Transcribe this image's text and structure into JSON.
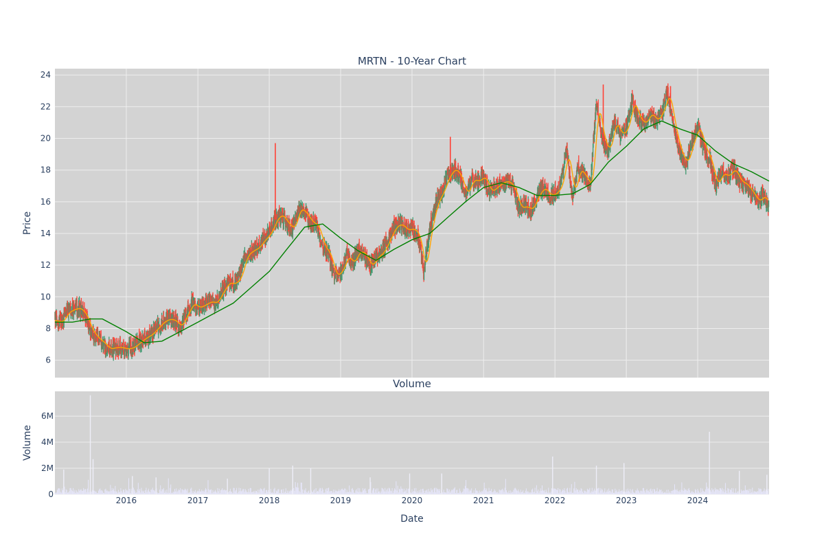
{
  "chart_data": [
    {
      "type": "candlestick",
      "title": "MRTN - 10-Year Chart",
      "ylabel": "Price",
      "ylim": [
        4.9,
        24.4
      ],
      "yticks": [
        6,
        8,
        10,
        12,
        14,
        16,
        18,
        20,
        22,
        24
      ],
      "x_range": [
        "2015-01-01",
        "2024-12-31"
      ],
      "grid": true,
      "colors": {
        "background": "#d3d3d3",
        "grid": "#eeeeee",
        "up": "#3d9970",
        "down": "#ff4136",
        "ma_short": "#ffa500",
        "ma_long": "#008000",
        "text": "#2a3f5f"
      },
      "price_path": [
        [
          "2015-01-01",
          8.5
        ],
        [
          "2015-02-01",
          8.4
        ],
        [
          "2015-03-01",
          9.0
        ],
        [
          "2015-04-01",
          9.2
        ],
        [
          "2015-05-01",
          9.3
        ],
        [
          "2015-06-01",
          8.9
        ],
        [
          "2015-07-01",
          7.9
        ],
        [
          "2015-08-01",
          7.4
        ],
        [
          "2015-09-01",
          7.1
        ],
        [
          "2015-10-01",
          6.7
        ],
        [
          "2015-11-01",
          6.8
        ],
        [
          "2015-12-01",
          6.8
        ],
        [
          "2016-01-01",
          6.7
        ],
        [
          "2016-02-01",
          6.8
        ],
        [
          "2016-03-01",
          7.1
        ],
        [
          "2016-04-01",
          7.4
        ],
        [
          "2016-05-01",
          7.6
        ],
        [
          "2016-06-01",
          8.0
        ],
        [
          "2016-07-01",
          8.4
        ],
        [
          "2016-08-01",
          8.6
        ],
        [
          "2016-09-01",
          8.5
        ],
        [
          "2016-10-01",
          8.1
        ],
        [
          "2016-11-01",
          8.9
        ],
        [
          "2016-12-01",
          9.6
        ],
        [
          "2017-01-01",
          9.3
        ],
        [
          "2017-02-01",
          9.5
        ],
        [
          "2017-03-01",
          9.7
        ],
        [
          "2017-04-01",
          9.6
        ],
        [
          "2017-05-01",
          10.3
        ],
        [
          "2017-06-01",
          10.9
        ],
        [
          "2017-07-01",
          10.8
        ],
        [
          "2017-08-01",
          11.2
        ],
        [
          "2017-09-01",
          12.6
        ],
        [
          "2017-10-01",
          12.9
        ],
        [
          "2017-11-01",
          13.1
        ],
        [
          "2017-12-01",
          13.6
        ],
        [
          "2018-01-01",
          14.0
        ],
        [
          "2018-02-01",
          14.9
        ],
        [
          "2018-03-01",
          15.2
        ],
        [
          "2018-04-01",
          14.6
        ],
        [
          "2018-05-01",
          14.3
        ],
        [
          "2018-06-01",
          15.6
        ],
        [
          "2018-07-01",
          15.3
        ],
        [
          "2018-08-01",
          14.7
        ],
        [
          "2018-09-01",
          14.5
        ],
        [
          "2018-10-01",
          13.2
        ],
        [
          "2018-11-01",
          12.7
        ],
        [
          "2018-12-01",
          11.3
        ],
        [
          "2019-01-01",
          11.6
        ],
        [
          "2019-02-01",
          12.6
        ],
        [
          "2019-03-01",
          12.1
        ],
        [
          "2019-04-01",
          12.9
        ],
        [
          "2019-05-01",
          12.7
        ],
        [
          "2019-06-01",
          11.9
        ],
        [
          "2019-07-01",
          12.5
        ],
        [
          "2019-08-01",
          12.8
        ],
        [
          "2019-09-01",
          13.6
        ],
        [
          "2019-10-01",
          14.4
        ],
        [
          "2019-11-01",
          14.6
        ],
        [
          "2019-12-01",
          14.2
        ],
        [
          "2020-01-01",
          14.3
        ],
        [
          "2020-02-01",
          13.9
        ],
        [
          "2020-03-01",
          11.6
        ],
        [
          "2020-04-01",
          14.3
        ],
        [
          "2020-05-01",
          15.9
        ],
        [
          "2020-06-01",
          16.6
        ],
        [
          "2020-07-01",
          17.6
        ],
        [
          "2020-08-01",
          18.1
        ],
        [
          "2020-09-01",
          17.6
        ],
        [
          "2020-10-01",
          16.4
        ],
        [
          "2020-11-01",
          17.4
        ],
        [
          "2020-12-01",
          17.3
        ],
        [
          "2021-01-01",
          17.6
        ],
        [
          "2021-02-01",
          16.6
        ],
        [
          "2021-03-01",
          16.9
        ],
        [
          "2021-04-01",
          17.2
        ],
        [
          "2021-05-01",
          17.3
        ],
        [
          "2021-06-01",
          16.9
        ],
        [
          "2021-07-01",
          15.6
        ],
        [
          "2021-08-01",
          15.7
        ],
        [
          "2021-09-01",
          15.5
        ],
        [
          "2021-10-01",
          16.4
        ],
        [
          "2021-11-01",
          16.9
        ],
        [
          "2021-12-01",
          16.4
        ],
        [
          "2022-01-01",
          16.5
        ],
        [
          "2022-02-01",
          17.1
        ],
        [
          "2022-03-01",
          19.3
        ],
        [
          "2022-04-01",
          16.4
        ],
        [
          "2022-05-01",
          18.1
        ],
        [
          "2022-06-01",
          17.6
        ],
        [
          "2022-07-01",
          16.9
        ],
        [
          "2022-08-01",
          22.4
        ],
        [
          "2022-09-01",
          19.9
        ],
        [
          "2022-10-01",
          19.2
        ],
        [
          "2022-11-01",
          21.1
        ],
        [
          "2022-12-01",
          20.2
        ],
        [
          "2023-01-01",
          20.6
        ],
        [
          "2023-02-01",
          22.4
        ],
        [
          "2023-03-01",
          21.3
        ],
        [
          "2023-04-01",
          20.9
        ],
        [
          "2023-05-01",
          21.6
        ],
        [
          "2023-06-01",
          21.1
        ],
        [
          "2023-07-01",
          21.7
        ],
        [
          "2023-08-01",
          22.9
        ],
        [
          "2023-09-01",
          20.6
        ],
        [
          "2023-10-01",
          19.1
        ],
        [
          "2023-11-01",
          18.4
        ],
        [
          "2023-12-01",
          19.7
        ],
        [
          "2024-01-01",
          20.8
        ],
        [
          "2024-02-01",
          19.4
        ],
        [
          "2024-03-01",
          18.7
        ],
        [
          "2024-04-01",
          17.0
        ],
        [
          "2024-05-01",
          17.8
        ],
        [
          "2024-06-01",
          17.6
        ],
        [
          "2024-07-01",
          18.1
        ],
        [
          "2024-08-01",
          17.3
        ],
        [
          "2024-09-01",
          17.1
        ],
        [
          "2024-10-01",
          16.6
        ],
        [
          "2024-11-01",
          16.0
        ],
        [
          "2024-12-01",
          16.4
        ],
        [
          "2024-12-31",
          15.6
        ]
      ],
      "spikes": [
        {
          "date": "2018-02-01",
          "high": 19.7
        },
        {
          "date": "2020-07-15",
          "high": 20.1
        },
        {
          "date": "2022-09-05",
          "high": 23.4
        },
        {
          "date": "2023-08-15",
          "high": 23.3
        }
      ],
      "ma_long": [
        [
          "2015-01-01",
          8.4
        ],
        [
          "2015-04-01",
          8.4
        ],
        [
          "2015-07-01",
          8.6
        ],
        [
          "2015-09-01",
          8.6
        ],
        [
          "2016-01-01",
          7.8
        ],
        [
          "2016-04-01",
          7.1
        ],
        [
          "2016-07-01",
          7.2
        ],
        [
          "2016-10-01",
          7.8
        ],
        [
          "2017-01-01",
          8.4
        ],
        [
          "2017-04-01",
          9.0
        ],
        [
          "2017-07-01",
          9.6
        ],
        [
          "2017-10-01",
          10.6
        ],
        [
          "2018-01-01",
          11.6
        ],
        [
          "2018-04-01",
          13.0
        ],
        [
          "2018-07-01",
          14.4
        ],
        [
          "2018-10-01",
          14.6
        ],
        [
          "2019-01-01",
          13.7
        ],
        [
          "2019-04-01",
          12.9
        ],
        [
          "2019-07-01",
          12.3
        ],
        [
          "2019-10-01",
          13.0
        ],
        [
          "2020-01-01",
          13.6
        ],
        [
          "2020-04-01",
          14.0
        ],
        [
          "2020-07-01",
          15.0
        ],
        [
          "2020-10-01",
          16.0
        ],
        [
          "2021-01-01",
          16.9
        ],
        [
          "2021-04-01",
          17.2
        ],
        [
          "2021-07-01",
          16.9
        ],
        [
          "2021-10-01",
          16.4
        ],
        [
          "2022-01-01",
          16.4
        ],
        [
          "2022-04-01",
          16.5
        ],
        [
          "2022-07-01",
          17.1
        ],
        [
          "2022-10-01",
          18.5
        ],
        [
          "2023-01-01",
          19.5
        ],
        [
          "2023-04-01",
          20.6
        ],
        [
          "2023-07-01",
          21.1
        ],
        [
          "2023-10-01",
          20.6
        ],
        [
          "2024-01-01",
          20.2
        ],
        [
          "2024-04-01",
          19.2
        ],
        [
          "2024-07-01",
          18.4
        ],
        [
          "2024-10-01",
          17.9
        ],
        [
          "2024-12-31",
          17.3
        ]
      ]
    },
    {
      "type": "bar",
      "title": "Volume",
      "xlabel": "Date",
      "ylabel": "Volume",
      "ylim": [
        0,
        7900000
      ],
      "yticks": [
        {
          "value": 0,
          "label": "0"
        },
        {
          "value": 2000000,
          "label": "2M"
        },
        {
          "value": 4000000,
          "label": "4M"
        },
        {
          "value": 6000000,
          "label": "6M"
        }
      ],
      "xticks": [
        {
          "date": "2016-01-01",
          "label": "2016"
        },
        {
          "date": "2017-01-01",
          "label": "2017"
        },
        {
          "date": "2018-01-01",
          "label": "2018"
        },
        {
          "date": "2019-01-01",
          "label": "2019"
        },
        {
          "date": "2020-01-01",
          "label": "2020"
        },
        {
          "date": "2021-01-01",
          "label": "2021"
        },
        {
          "date": "2022-01-01",
          "label": "2022"
        },
        {
          "date": "2023-01-01",
          "label": "2023"
        },
        {
          "date": "2024-01-01",
          "label": "2024"
        }
      ],
      "base_level": 300000,
      "spikes": [
        {
          "date": "2015-07-01",
          "value": 7600000
        },
        {
          "date": "2015-07-15",
          "value": 2700000
        },
        {
          "date": "2015-02-15",
          "value": 1900000
        },
        {
          "date": "2016-02-01",
          "value": 1400000
        },
        {
          "date": "2016-06-01",
          "value": 1300000
        },
        {
          "date": "2017-06-01",
          "value": 1200000
        },
        {
          "date": "2018-01-01",
          "value": 2000000
        },
        {
          "date": "2018-05-01",
          "value": 2200000
        },
        {
          "date": "2018-08-01",
          "value": 2000000
        },
        {
          "date": "2019-06-01",
          "value": 1300000
        },
        {
          "date": "2019-12-20",
          "value": 1600000
        },
        {
          "date": "2020-06-01",
          "value": 1600000
        },
        {
          "date": "2021-12-20",
          "value": 2900000
        },
        {
          "date": "2022-08-01",
          "value": 2200000
        },
        {
          "date": "2022-12-20",
          "value": 2400000
        },
        {
          "date": "2024-03-01",
          "value": 4800000
        },
        {
          "date": "2024-08-01",
          "value": 1800000
        },
        {
          "date": "2024-12-20",
          "value": 1500000
        }
      ]
    }
  ]
}
